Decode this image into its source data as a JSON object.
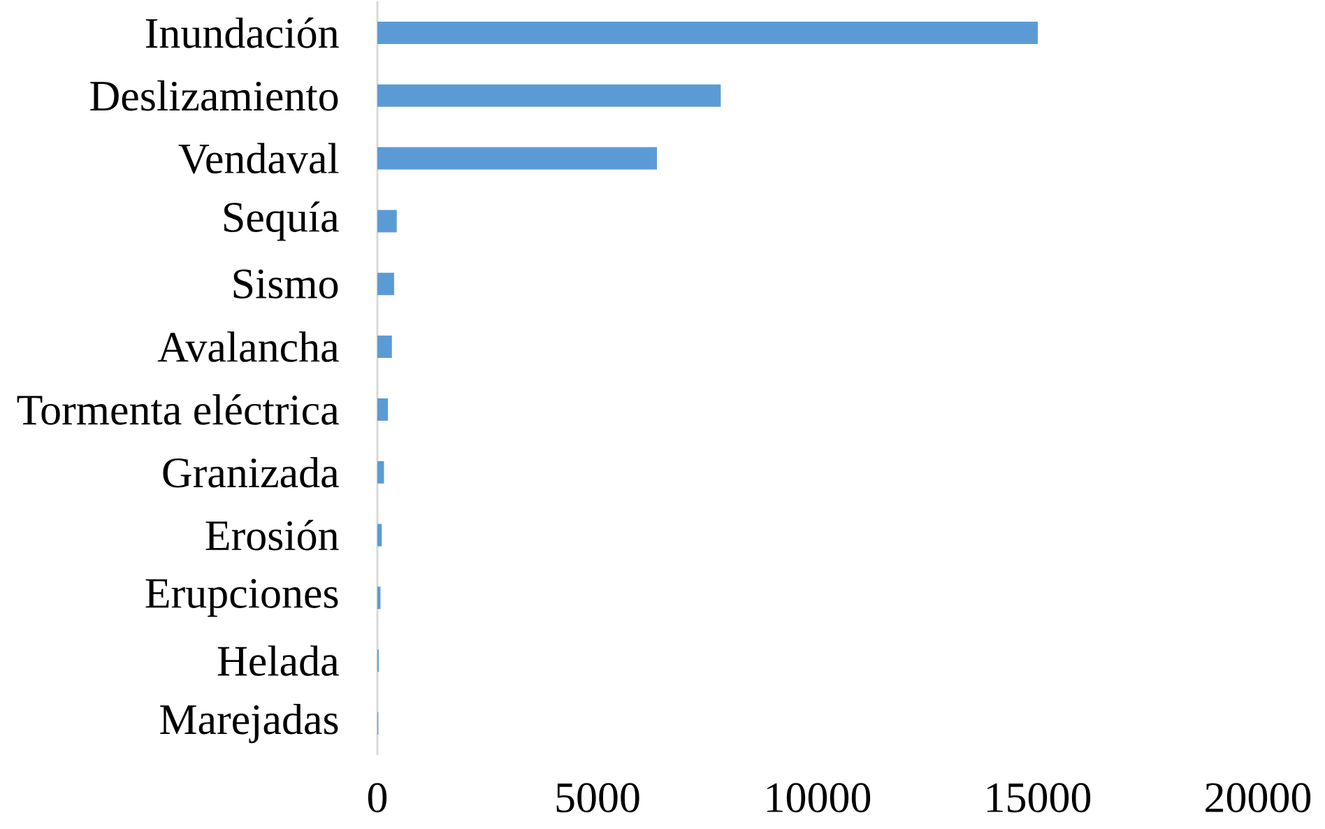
{
  "chart_data": {
    "type": "bar",
    "orientation": "horizontal",
    "categories": [
      "Inundación",
      "Deslizamiento",
      "Vendaval",
      "Sequía",
      "Sismo",
      "Avalancha",
      "Tormenta eléctrica",
      "Granizada",
      "Erosión",
      "Erupciones",
      "Helada",
      "Marejadas"
    ],
    "values": [
      15000,
      7800,
      6350,
      440,
      380,
      330,
      240,
      150,
      100,
      70,
      30,
      20
    ],
    "color": "#5b9bd5",
    "xlim": [
      0,
      20000
    ],
    "xticks": [
      0,
      5000,
      10000,
      15000,
      20000
    ]
  }
}
